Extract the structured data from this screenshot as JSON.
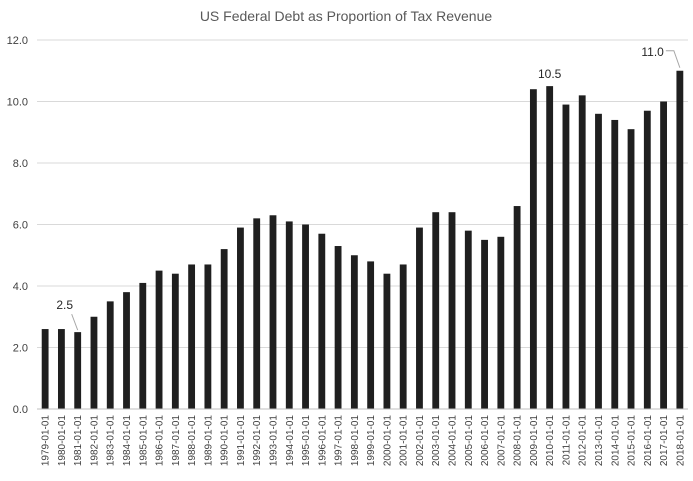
{
  "chart_data": {
    "type": "bar",
    "title": "US Federal Debt as Proportion of Tax Revenue",
    "xlabel": "",
    "ylabel": "",
    "ylim": [
      0,
      12
    ],
    "yticks": [
      "0.0",
      "2.0",
      "4.0",
      "6.0",
      "8.0",
      "10.0",
      "12.0"
    ],
    "grid": true,
    "legend": "none",
    "bar_color": "#1f1f1f",
    "categories": [
      "1979-01-01",
      "1980-01-01",
      "1981-01-01",
      "1982-01-01",
      "1983-01-01",
      "1984-01-01",
      "1985-01-01",
      "1986-01-01",
      "1987-01-01",
      "1988-01-01",
      "1989-01-01",
      "1990-01-01",
      "1991-01-01",
      "1992-01-01",
      "1993-01-01",
      "1994-01-01",
      "1995-01-01",
      "1996-01-01",
      "1997-01-01",
      "1998-01-01",
      "1999-01-01",
      "2000-01-01",
      "2001-01-01",
      "2002-01-01",
      "2003-01-01",
      "2004-01-01",
      "2005-01-01",
      "2006-01-01",
      "2007-01-01",
      "2008-01-01",
      "2009-01-01",
      "2010-01-01",
      "2011-01-01",
      "2012-01-01",
      "2013-01-01",
      "2014-01-01",
      "2015-01-01",
      "2016-01-01",
      "2017-01-01",
      "2018-01-01"
    ],
    "values": [
      2.6,
      2.6,
      2.5,
      3.0,
      3.5,
      3.8,
      4.1,
      4.5,
      4.4,
      4.7,
      4.7,
      5.2,
      5.9,
      6.2,
      6.3,
      6.1,
      6.0,
      5.7,
      5.3,
      5.0,
      4.8,
      4.4,
      4.7,
      5.9,
      6.4,
      6.4,
      5.8,
      5.5,
      5.6,
      6.6,
      10.4,
      10.5,
      9.9,
      10.2,
      9.6,
      9.4,
      9.1,
      9.7,
      10.0,
      11.0
    ],
    "annotations": [
      {
        "category": "1981-01-01",
        "text": "2.5"
      },
      {
        "category": "2010-01-01",
        "text": "10.5"
      },
      {
        "category": "2018-01-01",
        "text": "11.0"
      }
    ]
  }
}
